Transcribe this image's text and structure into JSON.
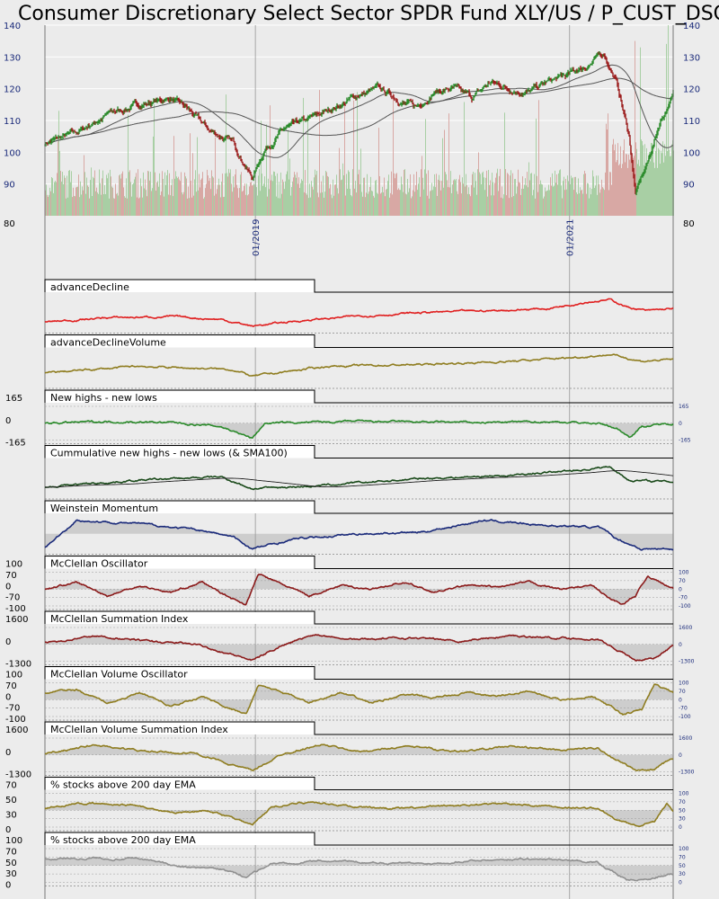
{
  "chart_data": {
    "type": "line",
    "title": "Consumer Discretionary Select Sector SPDR Fund XLY/US / P_CUST_DSCR / Con",
    "colors": {
      "background": "#ececec",
      "up_candle": "#2a8a2a",
      "down_candle": "#9b1c1c",
      "volume_up": "#a8cfa4",
      "volume_down": "#d8a8a4",
      "advanceDecline": "#e02020",
      "advanceDeclineVolume": "#8f7d20",
      "newHighsLows": "#2a8a2a",
      "cumulative": "#1a4a1a",
      "weinstein": "#1a2a7a",
      "mcclellan": "#8b1a1a",
      "volumeOsc": "#8f7d20",
      "pct200_1": "#8f7d20",
      "pct200_2": "#909090"
    },
    "price_panel": {
      "ylim": [
        80,
        140
      ],
      "y_ticks": [
        "90",
        "100",
        "110",
        "120",
        "130",
        "140"
      ],
      "y_bottom_label": "80",
      "x_labels": [
        "01/2019",
        "01/2021"
      ],
      "key_points": [
        [
          0,
          103
        ],
        [
          0.05,
          106
        ],
        [
          0.1,
          112
        ],
        [
          0.15,
          115
        ],
        [
          0.2,
          117
        ],
        [
          0.23,
          113
        ],
        [
          0.26,
          107
        ],
        [
          0.3,
          103
        ],
        [
          0.33,
          92
        ],
        [
          0.35,
          101
        ],
        [
          0.38,
          107
        ],
        [
          0.42,
          110
        ],
        [
          0.46,
          114
        ],
        [
          0.5,
          118
        ],
        [
          0.53,
          120
        ],
        [
          0.56,
          117
        ],
        [
          0.59,
          114
        ],
        [
          0.62,
          119
        ],
        [
          0.65,
          120
        ],
        [
          0.68,
          117
        ],
        [
          0.71,
          122
        ],
        [
          0.74,
          120
        ],
        [
          0.77,
          119
        ],
        [
          0.8,
          122
        ],
        [
          0.83,
          124
        ],
        [
          0.86,
          127
        ],
        [
          0.89,
          131
        ],
        [
          0.91,
          122
        ],
        [
          0.93,
          105
        ],
        [
          0.94,
          87
        ],
        [
          0.96,
          97
        ],
        [
          0.98,
          110
        ],
        [
          1.0,
          118
        ]
      ]
    },
    "panels": [
      {
        "label": "advanceDecline",
        "type": "line",
        "color_key": "advanceDecline",
        "fill": false,
        "left_ticks": [],
        "right_ticks": [],
        "key_points": [
          [
            0,
            0.22
          ],
          [
            0.1,
            0.35
          ],
          [
            0.2,
            0.38
          ],
          [
            0.28,
            0.3
          ],
          [
            0.33,
            0.1
          ],
          [
            0.4,
            0.25
          ],
          [
            0.5,
            0.4
          ],
          [
            0.6,
            0.5
          ],
          [
            0.7,
            0.55
          ],
          [
            0.8,
            0.62
          ],
          [
            0.86,
            0.82
          ],
          [
            0.9,
            0.88
          ],
          [
            0.93,
            0.65
          ],
          [
            0.96,
            0.55
          ],
          [
            1.0,
            0.62
          ]
        ]
      },
      {
        "label": "advanceDeclineVolume",
        "type": "line",
        "color_key": "advanceDeclineVolume",
        "fill": false,
        "left_ticks": [],
        "right_ticks": [],
        "key_points": [
          [
            0,
            0.35
          ],
          [
            0.15,
            0.55
          ],
          [
            0.3,
            0.45
          ],
          [
            0.33,
            0.25
          ],
          [
            0.45,
            0.55
          ],
          [
            0.6,
            0.6
          ],
          [
            0.75,
            0.7
          ],
          [
            0.85,
            0.82
          ],
          [
            0.9,
            0.9
          ],
          [
            0.95,
            0.7
          ],
          [
            1.0,
            0.75
          ]
        ]
      },
      {
        "label": "New highs - new lows",
        "type": "line",
        "color_key": "newHighsLows",
        "fill": true,
        "left_ticks": [
          "165",
          "0",
          "-165"
        ],
        "right_ticks": [
          "165",
          "0",
          "-165"
        ],
        "key_points": [
          [
            0,
            0.5
          ],
          [
            0.1,
            0.55
          ],
          [
            0.2,
            0.52
          ],
          [
            0.25,
            0.45
          ],
          [
            0.28,
            0.4
          ],
          [
            0.31,
            0.2
          ],
          [
            0.33,
            0.05
          ],
          [
            0.35,
            0.5
          ],
          [
            0.5,
            0.55
          ],
          [
            0.7,
            0.52
          ],
          [
            0.8,
            0.55
          ],
          [
            0.88,
            0.5
          ],
          [
            0.91,
            0.35
          ],
          [
            0.93,
            0.1
          ],
          [
            0.95,
            0.4
          ],
          [
            1.0,
            0.5
          ]
        ]
      },
      {
        "label": "Cummulative new highs - new lows (& SMA100)",
        "type": "line",
        "color_key": "cumulative",
        "fill": false,
        "left_ticks": [],
        "right_ticks": [],
        "key_points": [
          [
            0,
            0.25
          ],
          [
            0.15,
            0.45
          ],
          [
            0.28,
            0.55
          ],
          [
            0.33,
            0.2
          ],
          [
            0.45,
            0.3
          ],
          [
            0.6,
            0.5
          ],
          [
            0.75,
            0.6
          ],
          [
            0.85,
            0.75
          ],
          [
            0.9,
            0.85
          ],
          [
            0.93,
            0.45
          ],
          [
            1.0,
            0.4
          ]
        ]
      },
      {
        "label": "Weinstein Momentum",
        "type": "line",
        "color_key": "weinstein",
        "fill": true,
        "left_ticks": [],
        "right_ticks": [],
        "key_points": [
          [
            0,
            0.1
          ],
          [
            0.05,
            0.9
          ],
          [
            0.15,
            0.8
          ],
          [
            0.25,
            0.6
          ],
          [
            0.3,
            0.4
          ],
          [
            0.33,
            0.05
          ],
          [
            0.4,
            0.35
          ],
          [
            0.5,
            0.5
          ],
          [
            0.6,
            0.55
          ],
          [
            0.7,
            0.9
          ],
          [
            0.8,
            0.75
          ],
          [
            0.88,
            0.7
          ],
          [
            0.91,
            0.35
          ],
          [
            0.95,
            0.05
          ],
          [
            1.0,
            0.05
          ]
        ]
      },
      {
        "label": "McClellan Oscillator",
        "type": "line",
        "color_key": "mcclellan",
        "fill": true,
        "left_ticks": [
          "100",
          "70",
          "0",
          "-70",
          "-100"
        ],
        "right_ticks": [
          "100",
          "70",
          "0",
          "-70",
          "-100"
        ],
        "key_points": [
          [
            0,
            0.5
          ],
          [
            0.05,
            0.7
          ],
          [
            0.1,
            0.3
          ],
          [
            0.15,
            0.6
          ],
          [
            0.2,
            0.4
          ],
          [
            0.25,
            0.7
          ],
          [
            0.3,
            0.2
          ],
          [
            0.32,
            0.05
          ],
          [
            0.34,
            0.95
          ],
          [
            0.37,
            0.7
          ],
          [
            0.42,
            0.3
          ],
          [
            0.47,
            0.6
          ],
          [
            0.52,
            0.5
          ],
          [
            0.57,
            0.7
          ],
          [
            0.62,
            0.4
          ],
          [
            0.67,
            0.6
          ],
          [
            0.72,
            0.55
          ],
          [
            0.77,
            0.7
          ],
          [
            0.82,
            0.5
          ],
          [
            0.87,
            0.6
          ],
          [
            0.9,
            0.2
          ],
          [
            0.92,
            0.05
          ],
          [
            0.94,
            0.3
          ],
          [
            0.96,
            0.9
          ],
          [
            0.98,
            0.7
          ],
          [
            1.0,
            0.5
          ]
        ]
      },
      {
        "label": "McClellan Summation Index",
        "type": "line",
        "color_key": "mcclellan",
        "fill": true,
        "left_ticks": [
          "1600",
          "0",
          "-1300"
        ],
        "right_ticks": [
          "1600",
          "0",
          "-1300"
        ],
        "key_points": [
          [
            0,
            0.55
          ],
          [
            0.08,
            0.75
          ],
          [
            0.16,
            0.6
          ],
          [
            0.24,
            0.5
          ],
          [
            0.3,
            0.2
          ],
          [
            0.33,
            0.02
          ],
          [
            0.38,
            0.5
          ],
          [
            0.43,
            0.8
          ],
          [
            0.5,
            0.65
          ],
          [
            0.58,
            0.7
          ],
          [
            0.66,
            0.6
          ],
          [
            0.74,
            0.75
          ],
          [
            0.82,
            0.7
          ],
          [
            0.88,
            0.65
          ],
          [
            0.92,
            0.25
          ],
          [
            0.94,
            0.02
          ],
          [
            0.97,
            0.1
          ],
          [
            1.0,
            0.45
          ]
        ]
      },
      {
        "label": "McClellan Volume Oscillator",
        "type": "line",
        "color_key": "volumeOsc",
        "fill": true,
        "left_ticks": [
          "100",
          "70",
          "0",
          "-70",
          "-100"
        ],
        "right_ticks": [
          "100",
          "70",
          "0",
          "-70",
          "-100"
        ],
        "key_points": [
          [
            0,
            0.7
          ],
          [
            0.05,
            0.8
          ],
          [
            0.1,
            0.4
          ],
          [
            0.15,
            0.7
          ],
          [
            0.2,
            0.3
          ],
          [
            0.25,
            0.6
          ],
          [
            0.3,
            0.2
          ],
          [
            0.32,
            0.05
          ],
          [
            0.34,
            0.95
          ],
          [
            0.38,
            0.7
          ],
          [
            0.42,
            0.4
          ],
          [
            0.47,
            0.7
          ],
          [
            0.52,
            0.4
          ],
          [
            0.57,
            0.65
          ],
          [
            0.62,
            0.55
          ],
          [
            0.67,
            0.7
          ],
          [
            0.72,
            0.6
          ],
          [
            0.77,
            0.75
          ],
          [
            0.82,
            0.5
          ],
          [
            0.87,
            0.6
          ],
          [
            0.9,
            0.3
          ],
          [
            0.92,
            0.05
          ],
          [
            0.95,
            0.2
          ],
          [
            0.97,
            0.95
          ],
          [
            1.0,
            0.7
          ]
        ]
      },
      {
        "label": "McClellan Volume Summation Index",
        "type": "line",
        "color_key": "volumeOsc",
        "fill": true,
        "left_ticks": [
          "1600",
          "0",
          "-1300"
        ],
        "right_ticks": [
          "1600",
          "0",
          "-1300"
        ],
        "key_points": [
          [
            0,
            0.55
          ],
          [
            0.08,
            0.8
          ],
          [
            0.16,
            0.6
          ],
          [
            0.24,
            0.55
          ],
          [
            0.3,
            0.2
          ],
          [
            0.33,
            0.02
          ],
          [
            0.38,
            0.55
          ],
          [
            0.44,
            0.8
          ],
          [
            0.5,
            0.6
          ],
          [
            0.58,
            0.75
          ],
          [
            0.66,
            0.6
          ],
          [
            0.74,
            0.75
          ],
          [
            0.82,
            0.65
          ],
          [
            0.88,
            0.7
          ],
          [
            0.92,
            0.25
          ],
          [
            0.94,
            0.02
          ],
          [
            0.97,
            0.05
          ],
          [
            1.0,
            0.4
          ]
        ]
      },
      {
        "label": "% stocks above 200 day EMA",
        "type": "line",
        "color_key": "pct200_1",
        "fill": true,
        "left_ticks": [
          "70",
          "50",
          "30",
          "0"
        ],
        "right_ticks": [
          "100",
          "70",
          "50",
          "30",
          "0"
        ],
        "key_points": [
          [
            0,
            0.55
          ],
          [
            0.05,
            0.7
          ],
          [
            0.15,
            0.65
          ],
          [
            0.2,
            0.4
          ],
          [
            0.25,
            0.5
          ],
          [
            0.3,
            0.3
          ],
          [
            0.33,
            0.05
          ],
          [
            0.36,
            0.6
          ],
          [
            0.42,
            0.75
          ],
          [
            0.5,
            0.6
          ],
          [
            0.58,
            0.55
          ],
          [
            0.66,
            0.65
          ],
          [
            0.74,
            0.7
          ],
          [
            0.82,
            0.6
          ],
          [
            0.88,
            0.55
          ],
          [
            0.91,
            0.2
          ],
          [
            0.94,
            0.05
          ],
          [
            0.97,
            0.15
          ],
          [
            0.99,
            0.7
          ],
          [
            1.0,
            0.45
          ]
        ]
      },
      {
        "label": "% stocks above 200 day EMA",
        "type": "line",
        "color_key": "pct200_2",
        "fill": true,
        "left_ticks": [
          "100",
          "70",
          "50",
          "30",
          "0"
        ],
        "right_ticks": [
          "100",
          "70",
          "50",
          "30",
          "0"
        ],
        "key_points": [
          [
            0,
            0.7
          ],
          [
            0.08,
            0.72
          ],
          [
            0.16,
            0.68
          ],
          [
            0.22,
            0.45
          ],
          [
            0.28,
            0.4
          ],
          [
            0.32,
            0.15
          ],
          [
            0.36,
            0.55
          ],
          [
            0.44,
            0.65
          ],
          [
            0.52,
            0.6
          ],
          [
            0.6,
            0.55
          ],
          [
            0.68,
            0.65
          ],
          [
            0.76,
            0.7
          ],
          [
            0.84,
            0.65
          ],
          [
            0.88,
            0.6
          ],
          [
            0.91,
            0.25
          ],
          [
            0.93,
            0.05
          ],
          [
            0.96,
            0.1
          ],
          [
            1.0,
            0.25
          ]
        ]
      }
    ]
  }
}
